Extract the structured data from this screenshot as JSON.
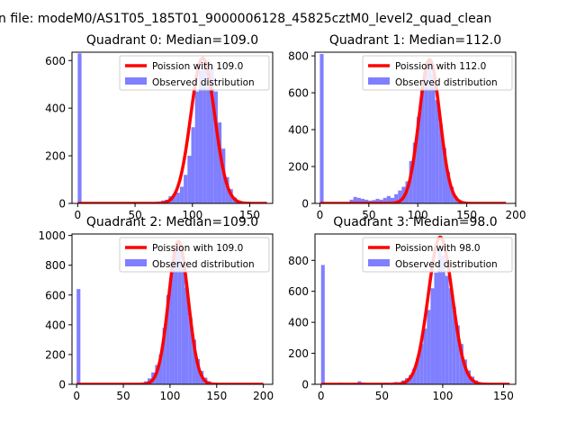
{
  "figure": {
    "suptitle": "n file: modeM0/AS1T05_185T01_9000006128_45825cztM0_level2_quad_clean"
  },
  "colors": {
    "fit_line": "#ff0000",
    "histogram": "#7f7fff",
    "background": "#ffffff",
    "axes": "#000000"
  },
  "chart_data": [
    {
      "type": "bar",
      "title": "Quadrant 0: Median=109.0",
      "xlim": [
        -5,
        170
      ],
      "ylim": [
        0,
        635
      ],
      "xticks": [
        0,
        50,
        100,
        150
      ],
      "yticks": [
        0,
        200,
        400,
        600
      ],
      "legend_position": "top-right",
      "legend": [
        "Poission with 109.0",
        "Observed distribution"
      ],
      "mu": 109.0,
      "fit_peak": 610,
      "fit_range": [
        0,
        165
      ],
      "histogram": {
        "name": "Observed distribution",
        "bin_width": 3.3,
        "bin_starts": [
          0,
          69.3,
          72.6,
          75.9,
          79.2,
          82.5,
          85.8,
          89.1,
          92.4,
          95.7,
          99.0,
          102.3,
          105.6,
          108.9,
          112.2,
          115.5,
          118.8,
          122.1,
          125.4,
          128.7,
          132.0,
          135.3,
          138.6,
          141.9,
          145.2
        ],
        "counts": [
          630,
          8,
          12,
          15,
          30,
          40,
          45,
          70,
          120,
          200,
          320,
          470,
          560,
          590,
          600,
          570,
          470,
          340,
          230,
          110,
          60,
          25,
          12,
          6,
          3
        ]
      }
    },
    {
      "type": "bar",
      "title": "Quadrant 1: Median=112.0",
      "xlim": [
        -5,
        200
      ],
      "ylim": [
        0,
        820
      ],
      "xticks": [
        0,
        50,
        100,
        150,
        200
      ],
      "yticks": [
        0,
        200,
        400,
        600,
        800
      ],
      "legend_position": "top-right",
      "legend": [
        "Poission with 112.0",
        "Observed distribution"
      ],
      "mu": 112.0,
      "fit_peak": 780,
      "fit_range": [
        0,
        190
      ],
      "histogram": {
        "name": "Observed distribution",
        "bin_width": 3.8,
        "bin_starts": [
          0,
          30.4,
          34.2,
          38.0,
          41.8,
          45.6,
          49.4,
          53.2,
          57.0,
          60.8,
          64.6,
          68.4,
          72.2,
          76.0,
          79.8,
          83.6,
          87.4,
          91.2,
          95.0,
          98.8,
          102.6,
          106.4,
          110.2,
          114.0,
          117.8,
          121.6,
          125.4,
          129.2,
          133.0,
          136.8,
          140.6,
          144.4
        ],
        "counts": [
          810,
          20,
          35,
          30,
          25,
          20,
          15,
          18,
          25,
          20,
          30,
          40,
          30,
          50,
          70,
          90,
          120,
          230,
          330,
          470,
          620,
          720,
          770,
          700,
          560,
          430,
          300,
          170,
          90,
          40,
          18,
          8
        ]
      }
    },
    {
      "type": "bar",
      "title": "Quadrant 2: Median=109.0",
      "xlim": [
        -5,
        210
      ],
      "ylim": [
        0,
        1010
      ],
      "xticks": [
        0,
        50,
        100,
        150,
        200
      ],
      "yticks": [
        0,
        200,
        400,
        600,
        800,
        1000
      ],
      "legend_position": "top-right",
      "legend": [
        "Poission with 109.0",
        "Observed distribution"
      ],
      "mu": 109.0,
      "fit_peak": 960,
      "fit_range": [
        0,
        200
      ],
      "histogram": {
        "name": "Observed distribution",
        "bin_width": 4.0,
        "bin_starts": [
          0,
          72,
          76,
          80,
          84,
          88,
          92,
          96,
          100,
          104,
          108,
          112,
          116,
          120,
          124,
          128,
          132,
          136,
          140,
          144,
          148
        ],
        "counts": [
          640,
          20,
          40,
          80,
          130,
          200,
          380,
          600,
          830,
          930,
          900,
          800,
          650,
          450,
          300,
          170,
          90,
          45,
          20,
          10,
          5
        ]
      }
    },
    {
      "type": "bar",
      "title": "Quadrant 3: Median=98.0",
      "xlim": [
        -5,
        160
      ],
      "ylim": [
        0,
        970
      ],
      "xticks": [
        0,
        50,
        100,
        150
      ],
      "yticks": [
        0,
        200,
        400,
        600,
        800
      ],
      "legend_position": "top-right",
      "legend": [
        "Poission with 98.0",
        "Observed distribution"
      ],
      "mu": 98.0,
      "fit_peak": 950,
      "fit_range": [
        0,
        155
      ],
      "histogram": {
        "name": "Observed distribution",
        "bin_width": 3.0,
        "bin_starts": [
          0,
          15,
          30,
          33,
          45,
          51,
          60,
          63,
          66,
          69,
          72,
          75,
          78,
          81,
          84,
          87,
          90,
          93,
          96,
          99,
          102,
          105,
          108,
          111,
          114,
          117,
          120,
          123,
          126,
          129,
          132
        ],
        "counts": [
          770,
          10,
          20,
          12,
          8,
          10,
          15,
          12,
          25,
          40,
          60,
          100,
          170,
          260,
          360,
          480,
          620,
          720,
          860,
          830,
          700,
          620,
          500,
          380,
          260,
          160,
          90,
          50,
          25,
          12,
          6
        ]
      }
    }
  ]
}
